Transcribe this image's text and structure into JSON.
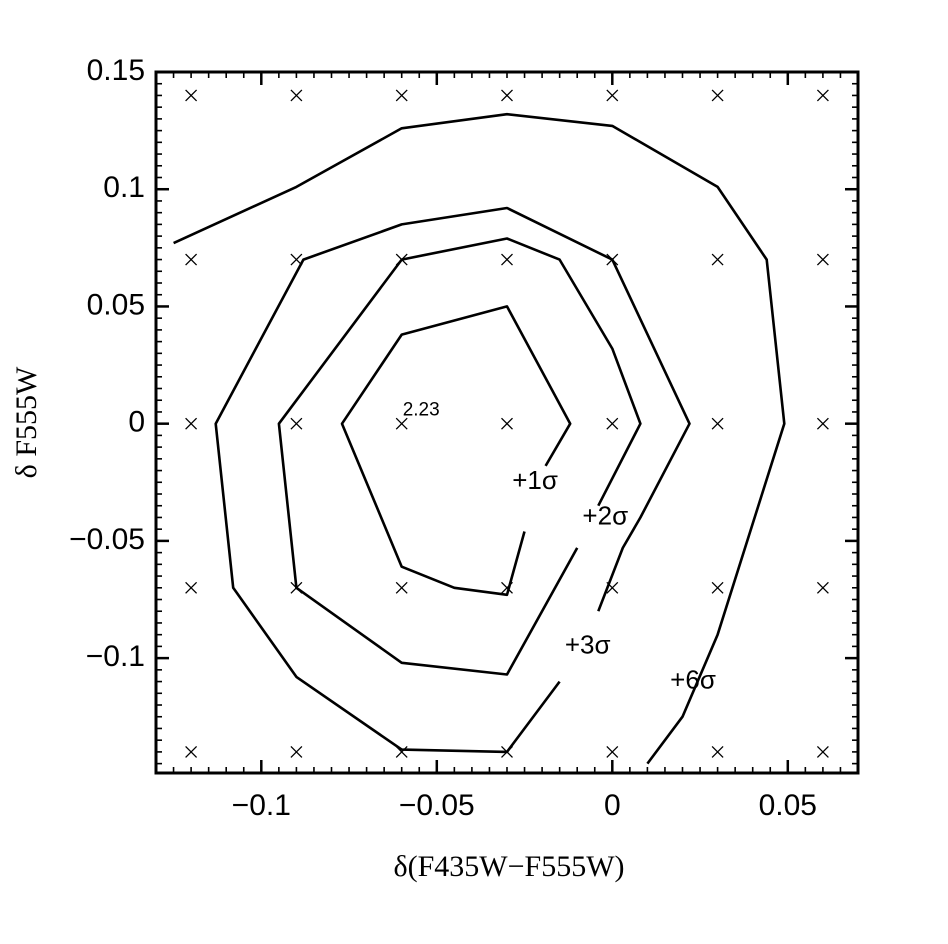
{
  "chart_data": {
    "type": "contour",
    "xlabel": "δ(F435W−F555W)",
    "ylabel": "δ F555W",
    "xlim": [
      -0.13,
      0.07
    ],
    "ylim": [
      -0.149,
      0.15
    ],
    "x_ticks": [
      -0.1,
      -0.05,
      0,
      0.05
    ],
    "x_tick_labels": [
      "−0.1",
      "−0.05",
      "0",
      "0.05"
    ],
    "y_ticks": [
      -0.1,
      -0.05,
      0,
      0.05,
      0.1,
      0.15
    ],
    "y_tick_labels": [
      "−0.1",
      "−0.05",
      "0",
      "0.05",
      "0.1",
      "0.15"
    ],
    "grid": false,
    "grid_points": {
      "marker": "×",
      "x": [
        -0.12,
        -0.09,
        -0.06,
        -0.03,
        0,
        0.03,
        0.06
      ],
      "y": [
        0.14,
        0.07,
        0,
        -0.07,
        -0.14
      ]
    },
    "minimum": {
      "x": -0.06,
      "y": 0.0,
      "label": "2.23"
    },
    "contours": [
      {
        "label": "+1σ",
        "label_at": [
          -0.022,
          -0.025
        ],
        "points": [
          [
            -0.025,
            -0.046
          ],
          [
            -0.03,
            -0.073
          ],
          [
            -0.045,
            -0.07
          ],
          [
            -0.06,
            -0.061
          ],
          [
            -0.077,
            0
          ],
          [
            -0.06,
            0.038
          ],
          [
            -0.03,
            0.05
          ],
          [
            -0.012,
            0.0
          ],
          [
            -0.019,
            -0.018
          ]
        ]
      },
      {
        "label": "+2σ",
        "label_at": [
          -0.002,
          -0.04
        ],
        "points": [
          [
            -0.01,
            -0.053
          ],
          [
            -0.03,
            -0.107
          ],
          [
            -0.06,
            -0.102
          ],
          [
            -0.09,
            -0.07
          ],
          [
            -0.095,
            0
          ],
          [
            -0.06,
            0.07
          ],
          [
            -0.03,
            0.079
          ],
          [
            -0.015,
            0.07
          ],
          [
            0,
            0.032
          ],
          [
            0.008,
            0
          ],
          [
            -0.004,
            -0.035
          ]
        ]
      },
      {
        "label": "+3σ",
        "label_at": [
          -0.007,
          -0.095
        ],
        "points": [
          [
            -0.015,
            -0.11
          ],
          [
            -0.03,
            -0.14
          ],
          [
            -0.06,
            -0.139
          ],
          [
            -0.09,
            -0.108
          ],
          [
            -0.108,
            -0.07
          ],
          [
            -0.113,
            0
          ],
          [
            -0.088,
            0.07
          ],
          [
            -0.06,
            0.085
          ],
          [
            -0.03,
            0.092
          ],
          [
            0,
            0.07
          ],
          [
            0.022,
            0
          ],
          [
            0.008,
            -0.04
          ],
          [
            0.003,
            -0.053
          ],
          [
            -0.004,
            -0.08
          ]
        ]
      },
      {
        "label": "+6σ",
        "label_at": [
          0.023,
          -0.11
        ],
        "points": [
          [
            0.01,
            -0.145
          ],
          [
            0.02,
            -0.125
          ],
          [
            0.03,
            -0.09
          ],
          [
            0.049,
            0
          ],
          [
            0.044,
            0.07
          ],
          [
            0.03,
            0.101
          ],
          [
            0,
            0.127
          ],
          [
            -0.03,
            0.132
          ],
          [
            -0.06,
            0.126
          ],
          [
            -0.09,
            0.101
          ],
          [
            -0.125,
            0.077
          ]
        ]
      }
    ]
  }
}
